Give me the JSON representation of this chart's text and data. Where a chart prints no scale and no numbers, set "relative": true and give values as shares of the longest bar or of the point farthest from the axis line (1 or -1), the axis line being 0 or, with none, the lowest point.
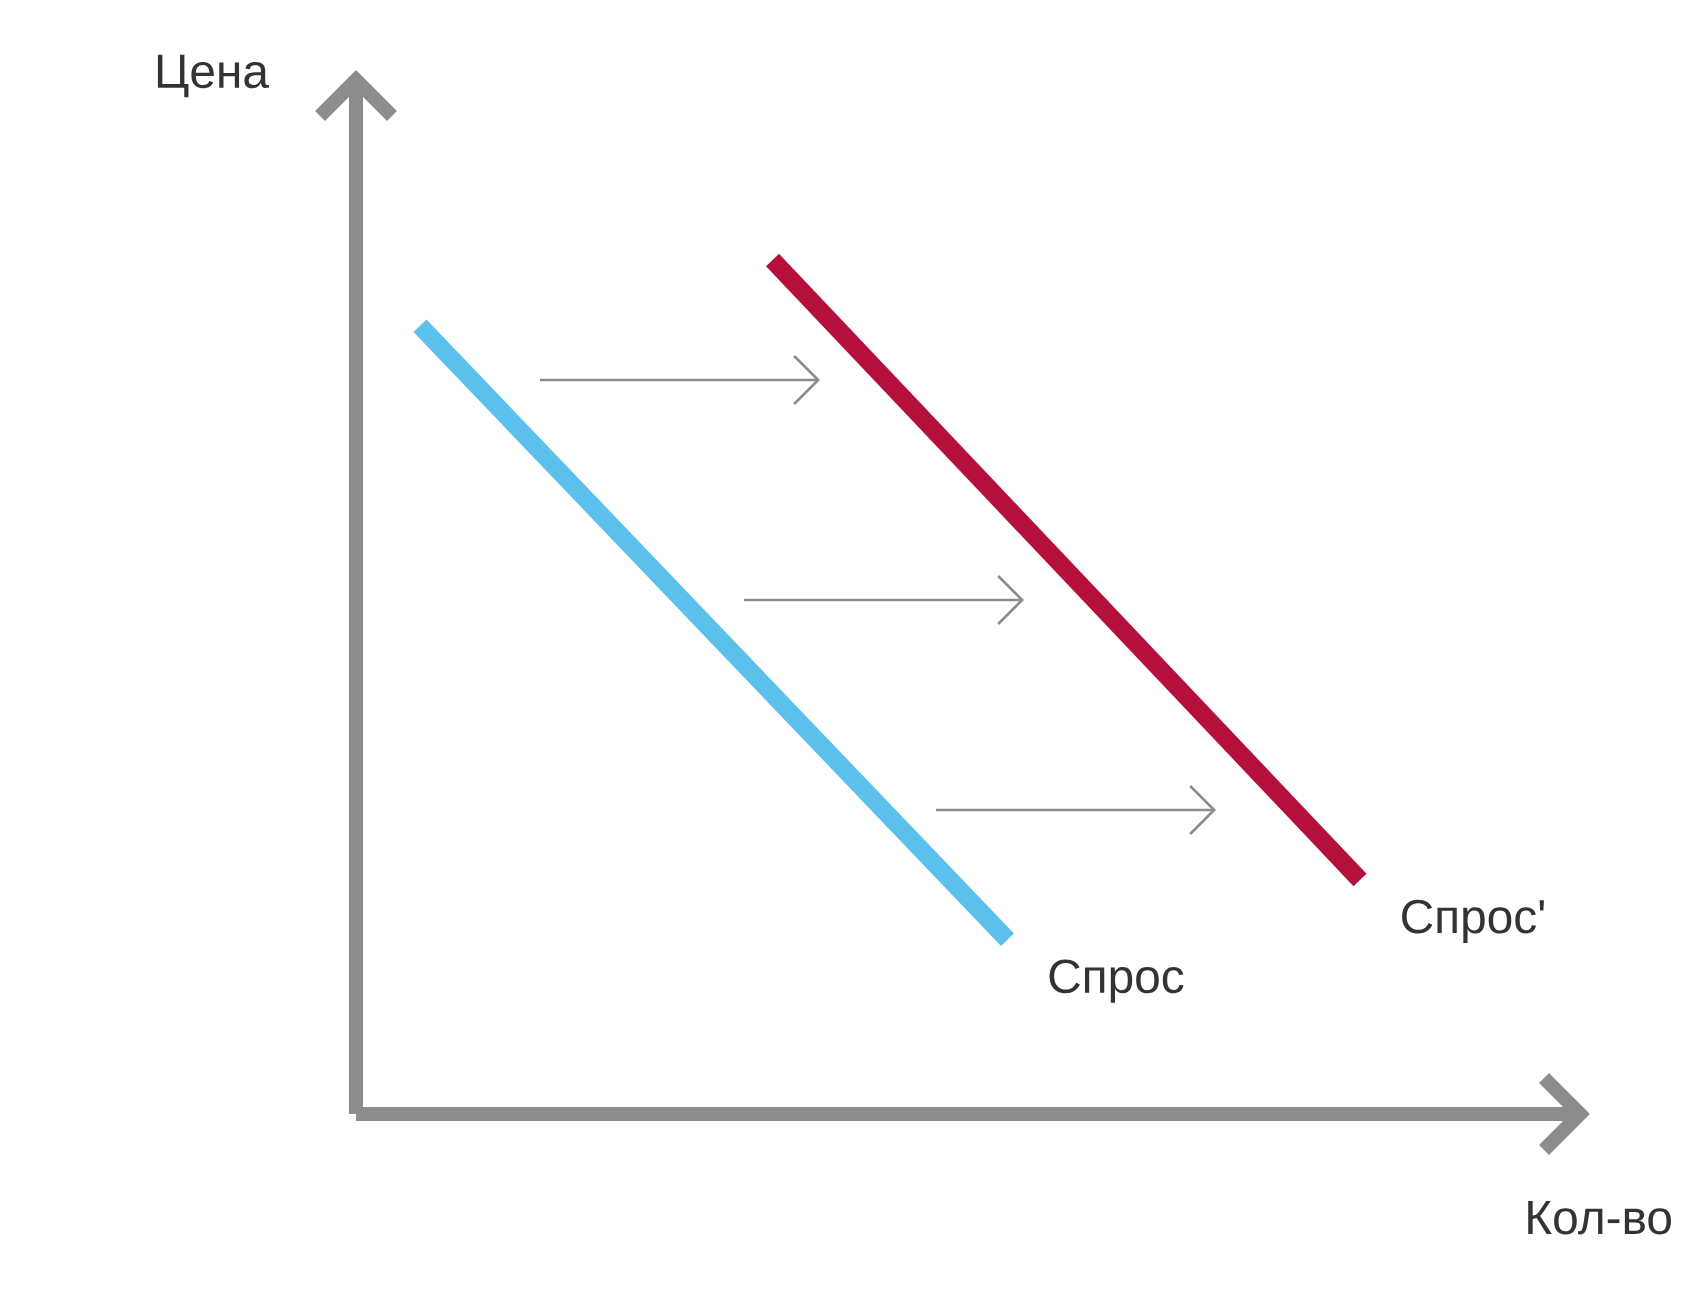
{
  "chart_data": {
    "type": "line",
    "xlabel": "Кол-во",
    "ylabel": "Цена",
    "relative": true,
    "legend": false,
    "marker": "none",
    "line_style": "solid",
    "categories": [
      null,
      null,
      null,
      null,
      null,
      null,
      null,
      null,
      null
    ],
    "series": [
      {
        "name": "Спрос",
        "color": "#5bc0eb",
        "values": [
          0.923,
          null,
          null,
          null,
          null,
          0.204,
          null,
          null,
          null
        ]
      },
      {
        "name": "Спрос'",
        "color": "#b5103c",
        "values": [
          null,
          null,
          null,
          1,
          null,
          null,
          null,
          null,
          0.274
        ]
      }
    ]
  }
}
